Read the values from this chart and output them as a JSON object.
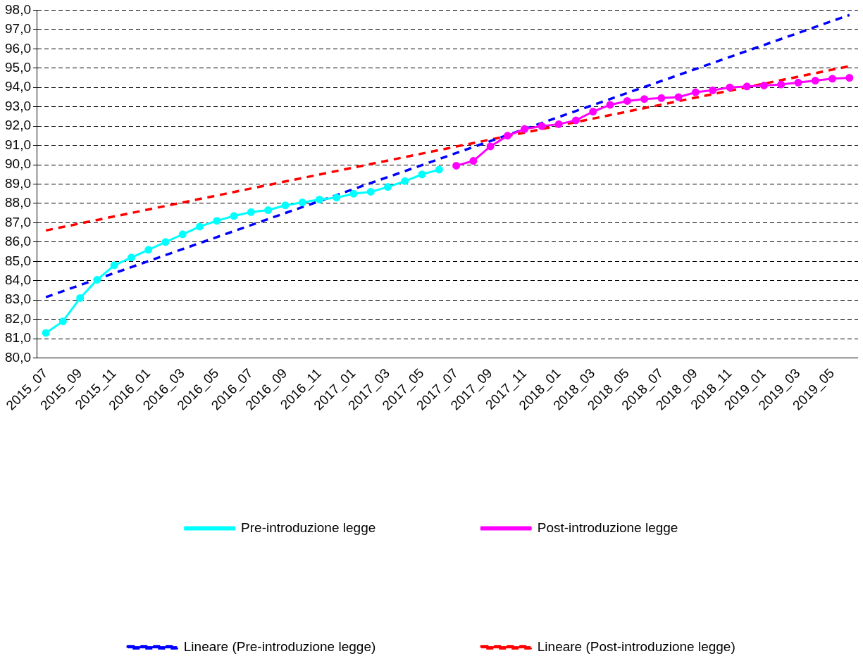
{
  "chart_data": {
    "type": "line",
    "categories": [
      "2015_07",
      null,
      "2015_09",
      null,
      "2015_11",
      null,
      "2016_01",
      null,
      "2016_03",
      null,
      "2016_05",
      null,
      "2016_07",
      null,
      "2016_09",
      null,
      "2016_11",
      null,
      "2017_01",
      null,
      "2017_03",
      null,
      "2017_05",
      null,
      "2017_07",
      null,
      "2017_09",
      null,
      "2017_11",
      null,
      "2018_01",
      null,
      "2018_03",
      null,
      "2018_05",
      null,
      "2018_07",
      null,
      "2018_09",
      null,
      "2018_11",
      null,
      "2019_01",
      null,
      "2019_03",
      null,
      "2019_05",
      null
    ],
    "series": [
      {
        "name": "Pre-introduzione legge",
        "color": "#00ffff",
        "values": [
          81.3,
          81.9,
          83.1,
          84.05,
          84.8,
          85.2,
          85.6,
          86.0,
          86.4,
          86.8,
          87.1,
          87.35,
          87.55,
          87.65,
          87.9,
          88.05,
          88.2,
          88.3,
          88.5,
          88.6,
          88.85,
          89.15,
          89.5,
          89.75,
          null,
          null,
          null,
          null,
          null,
          null,
          null,
          null,
          null,
          null,
          null,
          null,
          null,
          null,
          null,
          null,
          null,
          null,
          null,
          null,
          null,
          null,
          null,
          null
        ]
      },
      {
        "name": "Post-introduzione legge",
        "color": "#ff00ff",
        "values": [
          null,
          null,
          null,
          null,
          null,
          null,
          null,
          null,
          null,
          null,
          null,
          null,
          null,
          null,
          null,
          null,
          null,
          null,
          null,
          null,
          null,
          null,
          null,
          null,
          89.95,
          90.2,
          90.95,
          91.5,
          91.85,
          92.0,
          92.1,
          92.3,
          92.75,
          93.1,
          93.3,
          93.4,
          93.45,
          93.5,
          93.75,
          93.85,
          94.0,
          94.05,
          94.1,
          94.15,
          94.25,
          94.35,
          94.45,
          94.5
        ]
      },
      {
        "name": "Lineare (Pre-introduzione legge)",
        "color": "#0000ff",
        "marker": "none",
        "line_style": "dashed",
        "values": [
          83.15,
          null,
          null,
          null,
          null,
          null,
          null,
          null,
          null,
          null,
          null,
          null,
          null,
          null,
          null,
          null,
          null,
          null,
          null,
          null,
          null,
          null,
          null,
          null,
          null,
          null,
          null,
          null,
          null,
          null,
          null,
          null,
          null,
          null,
          null,
          null,
          null,
          null,
          null,
          null,
          null,
          null,
          null,
          null,
          null,
          null,
          null,
          97.75
        ]
      },
      {
        "name": "Lineare (Post-introduzione legge)",
        "color": "#ff0000",
        "marker": "none",
        "line_style": "dashed",
        "values": [
          86.6,
          null,
          null,
          null,
          null,
          null,
          null,
          null,
          null,
          null,
          null,
          null,
          null,
          null,
          null,
          null,
          null,
          null,
          null,
          null,
          null,
          null,
          null,
          null,
          null,
          null,
          null,
          null,
          null,
          null,
          null,
          null,
          null,
          null,
          null,
          null,
          null,
          null,
          null,
          null,
          null,
          null,
          null,
          null,
          null,
          null,
          null,
          95.1
        ]
      }
    ],
    "ylim": [
      80,
      98
    ],
    "yticks": [
      {
        "value": 80,
        "label": "80,0"
      },
      {
        "value": 81,
        "label": "81,0"
      },
      {
        "value": 82,
        "label": "82,0"
      },
      {
        "value": 83,
        "label": "83,0"
      },
      {
        "value": 84,
        "label": "84,0"
      },
      {
        "value": 85,
        "label": "85,0"
      },
      {
        "value": 86,
        "label": "86,0"
      },
      {
        "value": 87,
        "label": "87,0"
      },
      {
        "value": 88,
        "label": "88,0"
      },
      {
        "value": 89,
        "label": "89,0"
      },
      {
        "value": 90,
        "label": "90,0"
      },
      {
        "value": 91,
        "label": "91,0"
      },
      {
        "value": 92,
        "label": "92,0"
      },
      {
        "value": 93,
        "label": "93,0"
      },
      {
        "value": 94,
        "label": "94,0"
      },
      {
        "value": 95,
        "label": "95,0"
      },
      {
        "value": 96,
        "label": "96,0"
      },
      {
        "value": 97,
        "label": "97,0"
      },
      {
        "value": 98,
        "label": "98,0"
      }
    ],
    "grid": "y",
    "legend": "bottom",
    "marker": "circle",
    "line_style": "solid"
  }
}
